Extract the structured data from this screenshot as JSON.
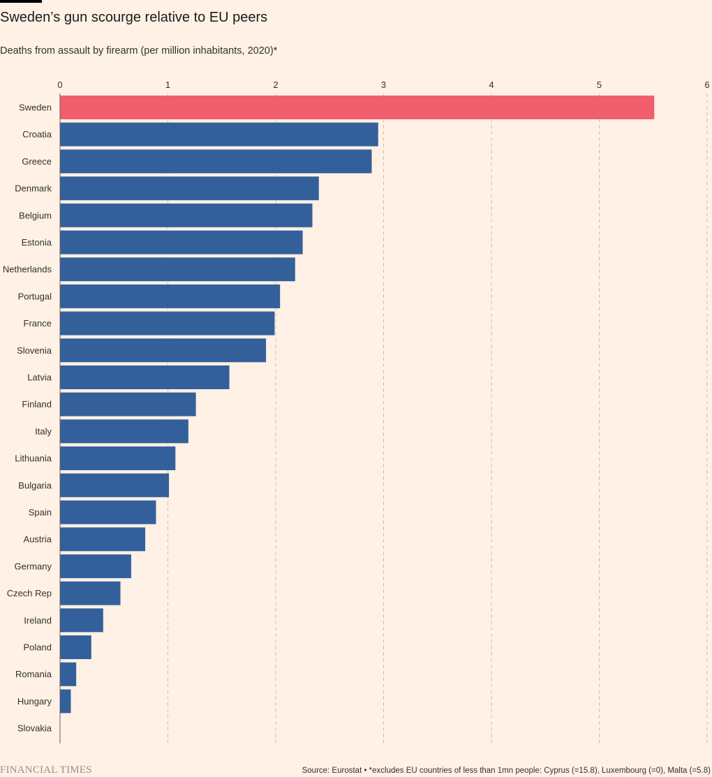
{
  "header": {
    "title": "Sweden’s gun scourge relative to EU peers",
    "subtitle": "Deaths from assault by firearm (per million inhabitants, 2020)*"
  },
  "footer": {
    "brand": "FINANCIAL TIMES",
    "source": "Source: Eurostat • *excludes EU countries of less than 1mn people: Cyprus (=15.8), Luxembourg (=0), Malta (=5.8)"
  },
  "colors": {
    "background": "#FFF1E5",
    "bar": "#33609A",
    "highlight": "#F05F6B",
    "grid": "#C9BFB6",
    "text": "#33302E"
  },
  "chart_data": {
    "type": "bar",
    "orientation": "horizontal",
    "title": "Sweden’s gun scourge relative to EU peers",
    "subtitle": "Deaths from assault by firearm (per million inhabitants, 2020)*",
    "xlabel": "",
    "ylabel": "",
    "xlim": [
      0,
      6
    ],
    "xticks": [
      0,
      1,
      2,
      3,
      4,
      5,
      6
    ],
    "grid": "vertical dashed",
    "axis_position": "top",
    "highlight_category": "Sweden",
    "categories": [
      "Sweden",
      "Croatia",
      "Greece",
      "Denmark",
      "Belgium",
      "Estonia",
      "Netherlands",
      "Portugal",
      "France",
      "Slovenia",
      "Latvia",
      "Finland",
      "Italy",
      "Lithuania",
      "Bulgaria",
      "Spain",
      "Austria",
      "Germany",
      "Czech Rep",
      "Ireland",
      "Poland",
      "Romania",
      "Hungary",
      "Slovakia"
    ],
    "values": [
      5.51,
      2.95,
      2.89,
      2.4,
      2.34,
      2.25,
      2.18,
      2.04,
      1.99,
      1.91,
      1.57,
      1.26,
      1.19,
      1.07,
      1.01,
      0.89,
      0.79,
      0.66,
      0.56,
      0.4,
      0.29,
      0.15,
      0.1,
      0.0
    ]
  }
}
